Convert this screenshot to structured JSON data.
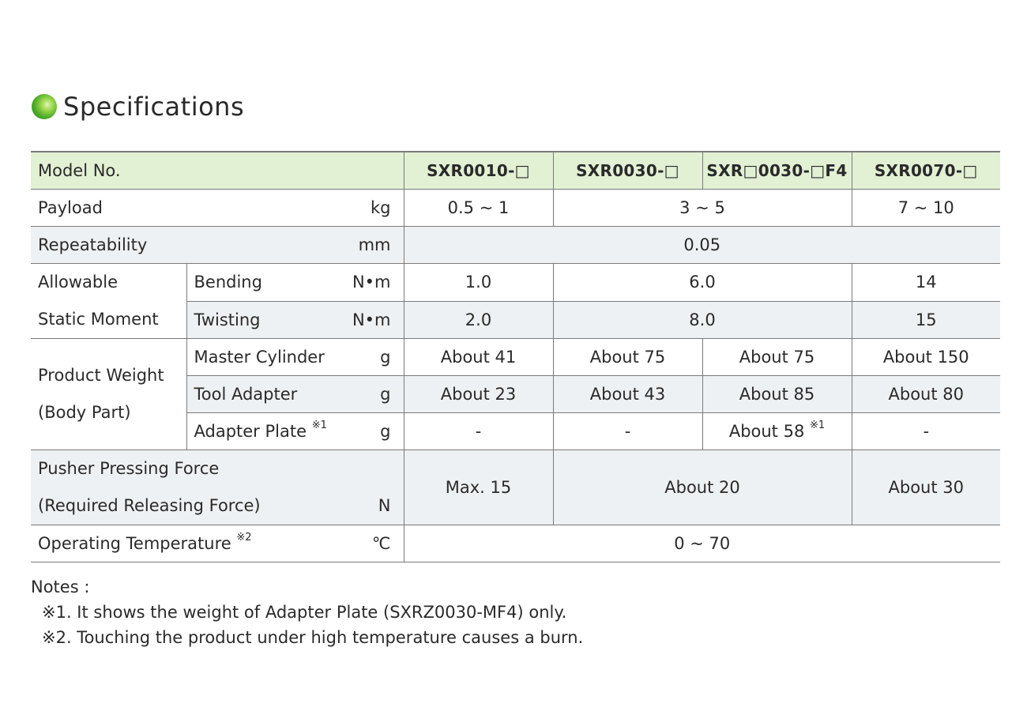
{
  "heading": "Specifications",
  "header": {
    "label": "Model No.",
    "models": [
      "SXR0010-□",
      "SXR0030-□",
      "SXR□0030-□F4",
      "SXR0070-□"
    ]
  },
  "rows": {
    "payload": {
      "label": "Payload",
      "unit": "kg",
      "v1": "0.5 ~ 1",
      "v2": "3 ~ 5",
      "v4": "7 ~ 10"
    },
    "repeatability": {
      "label": "Repeatability",
      "unit": "mm",
      "v": "0.05"
    },
    "moment": {
      "group_line1": "Allowable",
      "group_line2": "Static Moment",
      "bending": {
        "label": "Bending",
        "unit": "N•m",
        "v1": "1.0",
        "v2": "6.0",
        "v4": "14"
      },
      "twisting": {
        "label": "Twisting",
        "unit": "N•m",
        "v1": "2.0",
        "v2": "8.0",
        "v4": "15"
      }
    },
    "weight": {
      "group_line1": "Product Weight",
      "group_line2": "(Body Part)",
      "master": {
        "label": "Master Cylinder",
        "unit": "g",
        "v1": "About 41",
        "v2": "About 75",
        "v3": "About 75",
        "v4": "About 150"
      },
      "tool": {
        "label": "Tool Adapter",
        "unit": "g",
        "v1": "About 23",
        "v2": "About 43",
        "v3": "About 85",
        "v4": "About 80"
      },
      "plate": {
        "label": "Adapter Plate",
        "mark": "※1",
        "unit": "g",
        "v1": "-",
        "v2": "-",
        "v3": "About 58",
        "v3_mark": "※1",
        "v4": "-"
      }
    },
    "pusher": {
      "line1": "Pusher Pressing Force",
      "line2": "(Required Releasing Force)",
      "unit": "N",
      "v1": "Max. 15",
      "v2": "About 20",
      "v4": "About 30"
    },
    "temperature": {
      "label": "Operating Temperature",
      "mark": "※2",
      "unit": "℃",
      "v": "0 ~ 70"
    }
  },
  "notes": {
    "title": "Notes :",
    "items": [
      "※1. It shows the weight of Adapter Plate (SXRZ0030-MF4) only.",
      "※2. Touching the product under high temperature causes a burn."
    ]
  }
}
